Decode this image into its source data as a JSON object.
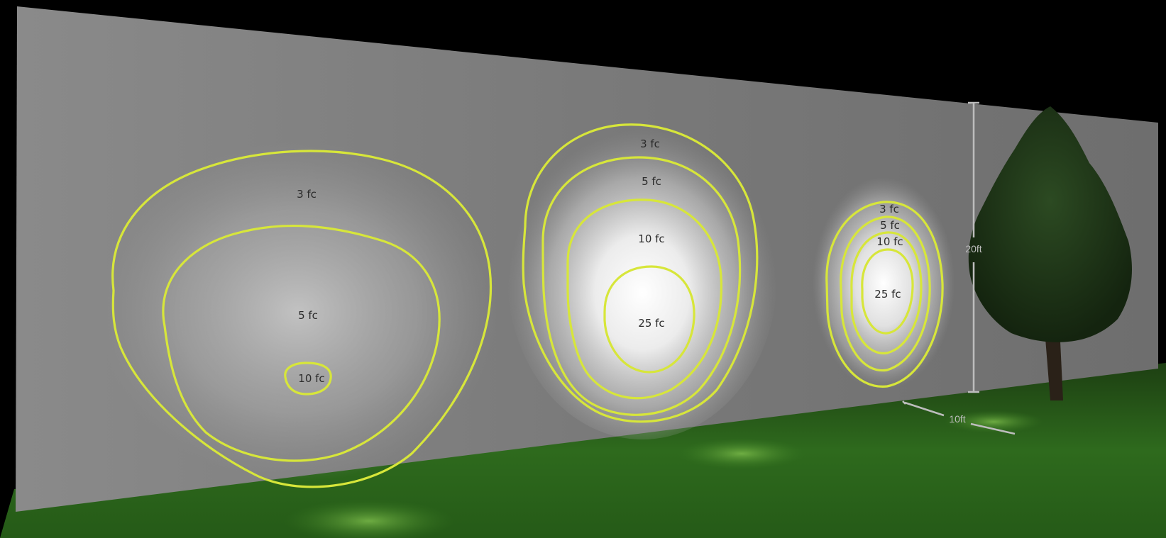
{
  "colors": {
    "contour": "#d7e63a",
    "wall": "#8f8f8f",
    "grass": "#2f6a1f",
    "sky": "#000000",
    "dimension": "#bdbdbd"
  },
  "fixtures": [
    {
      "name": "fixture-left",
      "contours": [
        "3 fc",
        "5 fc",
        "10 fc"
      ]
    },
    {
      "name": "fixture-middle",
      "contours": [
        "3 fc",
        "5 fc",
        "10 fc",
        "25 fc"
      ]
    },
    {
      "name": "fixture-right",
      "contours": [
        "3 fc",
        "5 fc",
        "10 fc",
        "25 fc"
      ]
    }
  ],
  "dimensions": {
    "height": "20ft",
    "distance": "10ft"
  }
}
